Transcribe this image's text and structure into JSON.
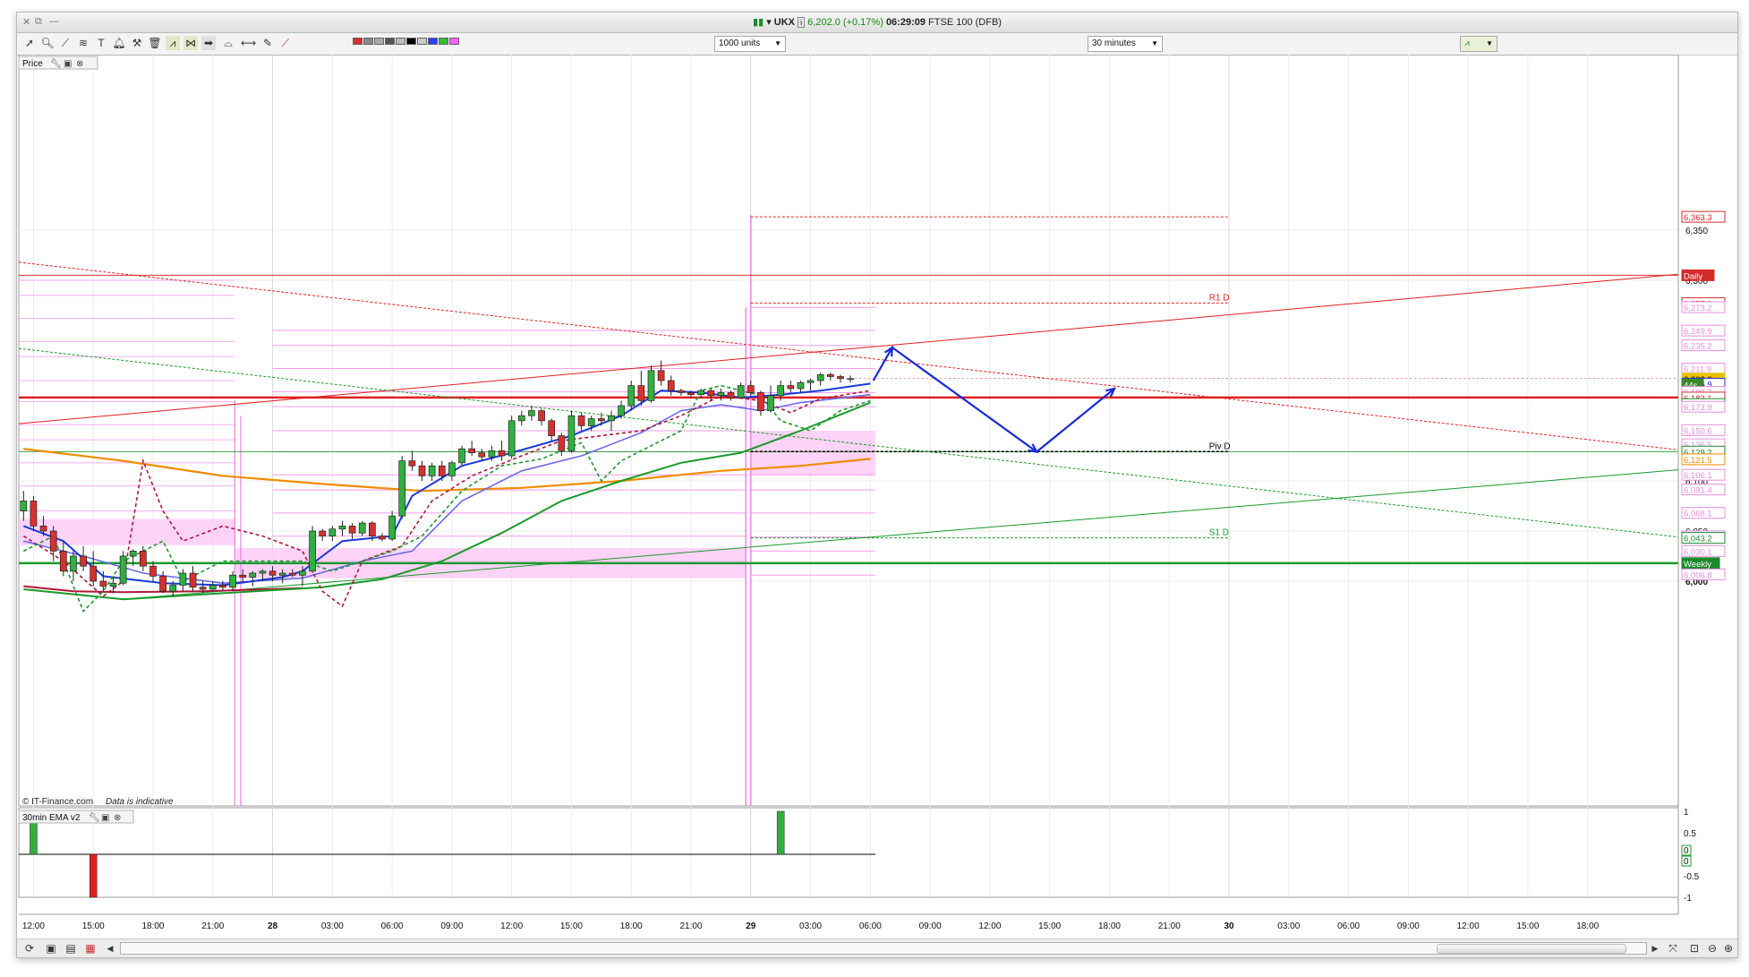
{
  "window": {
    "symbol": "UKX",
    "price": "6,202.0",
    "change": "(+0.17%)",
    "time": "06:29:09",
    "instrument": "FTSE 100 (DFB)"
  },
  "toolbar": {
    "units_select": "1000 units",
    "interval_select": "30 minutes"
  },
  "price_panel": {
    "label": "Price",
    "watermark_source": "© IT-Finance.com",
    "watermark_note": "Data is indicative"
  },
  "indicator_panel": {
    "label": "30min EMA v2"
  },
  "price_axis": {
    "ticks": [
      {
        "v": 6350,
        "t": "6,350"
      },
      {
        "v": 6300,
        "t": "6,300"
      },
      {
        "v": 6100,
        "t": "6,100"
      },
      {
        "v": 6050,
        "t": "6,050"
      },
      {
        "v": 6000,
        "t": "6,000"
      }
    ],
    "badges": [
      {
        "v": 6363.3,
        "t": "6,363.3",
        "c": "#d42a2a"
      },
      {
        "v": 6305,
        "t": "Daily",
        "c": "#d42a2a",
        "fill": true
      },
      {
        "v": 6277.3,
        "t": "6,277.3",
        "c": "#d42a2a"
      },
      {
        "v": 6273.2,
        "t": "6,273.2",
        "c": "#e88ce0"
      },
      {
        "v": 6249.9,
        "t": "6,249.9",
        "c": "#e88ce0"
      },
      {
        "v": 6235.2,
        "t": "6,235.2",
        "c": "#e88ce0"
      },
      {
        "v": 6211.9,
        "t": "6,211.9",
        "c": "#e88ce0"
      },
      {
        "v": 6202.0,
        "t": "6,202.0",
        "c": "#e8c200",
        "fill": true
      },
      {
        "v": 6196.9,
        "t": "6,196.9",
        "c": "#2a32d4"
      },
      {
        "v": 6196.0,
        "t": "44s",
        "c": "#3a8a2a",
        "fill": true
      },
      {
        "v": 6188.7,
        "t": "6,188.7",
        "c": "#e88ce0"
      },
      {
        "v": 6183.1,
        "t": "6,183.1",
        "c": "#d42a2a"
      },
      {
        "v": 6176.6,
        "t": "6,176.6",
        "c": "#1a8a2a"
      },
      {
        "v": 6173.9,
        "t": "6,173.9",
        "c": "#e88ce0"
      },
      {
        "v": 6150.6,
        "t": "6,150.6",
        "c": "#e88ce0"
      },
      {
        "v": 6136.5,
        "t": "6,136.5",
        "c": "#e88ce0"
      },
      {
        "v": 6129.2,
        "t": "6,129.2",
        "c": "#1a8a2a"
      },
      {
        "v": 6121.5,
        "t": "6,121.5",
        "c": "#f08c00"
      },
      {
        "v": 6106.1,
        "t": "6,106.1",
        "c": "#e88ce0"
      },
      {
        "v": 6091.4,
        "t": "6,091.4",
        "c": "#e88ce0"
      },
      {
        "v": 6068.1,
        "t": "6,068.1",
        "c": "#e88ce0"
      },
      {
        "v": 6044.8,
        "t": "6,044.8",
        "c": "#e88ce0"
      },
      {
        "v": 6043.2,
        "t": "6,043.2",
        "c": "#1a8a2a"
      },
      {
        "v": 6030.1,
        "t": "6,030.1",
        "c": "#e88ce0"
      },
      {
        "v": 6018,
        "t": "Weekly",
        "c": "#1a8a2a",
        "fill": true
      },
      {
        "v": 6006.8,
        "t": "6,006.8",
        "c": "#e88ce0"
      }
    ]
  },
  "pivots": {
    "r1": {
      "label": "R1 D",
      "v": 6277.3
    },
    "piv": {
      "label": "Piv D",
      "v": 6129.2
    },
    "s1": {
      "label": "S1 D",
      "v": 6043.2
    }
  },
  "levels": {
    "daily": 6305,
    "main_red": 6183.1,
    "weekly": 6018
  },
  "indicator_axis": [
    "1",
    "0.5",
    "0",
    "0",
    "-0.5",
    "-1"
  ],
  "time_axis": [
    {
      "i": 1,
      "t": "12:00"
    },
    {
      "i": 7,
      "t": "15:00"
    },
    {
      "i": 13,
      "t": "18:00"
    },
    {
      "i": 19,
      "t": "21:00"
    },
    {
      "i": 25,
      "t": "28",
      "bold": true
    },
    {
      "i": 31,
      "t": "03:00"
    },
    {
      "i": 37,
      "t": "06:00"
    },
    {
      "i": 43,
      "t": "09:00"
    },
    {
      "i": 49,
      "t": "12:00"
    },
    {
      "i": 55,
      "t": "15:00"
    },
    {
      "i": 61,
      "t": "18:00"
    },
    {
      "i": 67,
      "t": "21:00"
    },
    {
      "i": 73,
      "t": "29",
      "bold": true
    },
    {
      "i": 79,
      "t": "03:00"
    },
    {
      "i": 85,
      "t": "06:00"
    },
    {
      "i": 91,
      "t": "09:00"
    },
    {
      "i": 97,
      "t": "12:00"
    },
    {
      "i": 103,
      "t": "15:00"
    },
    {
      "i": 109,
      "t": "18:00"
    },
    {
      "i": 115,
      "t": "21:00"
    },
    {
      "i": 121,
      "t": "30",
      "bold": true
    },
    {
      "i": 127,
      "t": "03:00"
    },
    {
      "i": 133,
      "t": "06:00"
    },
    {
      "i": 139,
      "t": "09:00"
    },
    {
      "i": 145,
      "t": "12:00"
    },
    {
      "i": 151,
      "t": "15:00"
    },
    {
      "i": 157,
      "t": "18:00"
    }
  ],
  "chart_data": {
    "type": "candlestick",
    "instrument": "FTSE 100 (DFB)",
    "interval": "30 minutes",
    "ylim": [
      5990,
      6365
    ],
    "candles": [
      [
        6070,
        6090,
        6060,
        6080
      ],
      [
        6080,
        6085,
        6050,
        6055
      ],
      [
        6055,
        6065,
        6045,
        6050
      ],
      [
        6050,
        6055,
        6020,
        6030
      ],
      [
        6030,
        6040,
        6005,
        6010
      ],
      [
        6010,
        6030,
        6000,
        6025
      ],
      [
        6025,
        6035,
        6010,
        6015
      ],
      [
        6015,
        6030,
        5995,
        6000
      ],
      [
        6000,
        6010,
        5990,
        5995
      ],
      [
        5995,
        6005,
        5988,
        5998
      ],
      [
        5998,
        6030,
        5996,
        6025
      ],
      [
        6025,
        6032,
        6015,
        6030
      ],
      [
        6030,
        6035,
        6010,
        6015
      ],
      [
        6015,
        6020,
        6000,
        6005
      ],
      [
        6005,
        6010,
        5988,
        5990
      ],
      [
        5990,
        6000,
        5985,
        5996
      ],
      [
        5996,
        6012,
        5990,
        6008
      ],
      [
        6008,
        6015,
        5990,
        5994
      ],
      [
        5994,
        6000,
        5988,
        5992
      ],
      [
        5992,
        6000,
        5990,
        5996
      ],
      [
        5996,
        6000,
        5990,
        5994
      ],
      [
        5994,
        6010,
        5990,
        6006
      ],
      [
        6006,
        6012,
        5998,
        6004
      ],
      [
        6004,
        6010,
        5995,
        6008
      ],
      [
        6008,
        6012,
        6000,
        6010
      ],
      [
        6010,
        6015,
        6000,
        6006
      ],
      [
        6006,
        6012,
        5998,
        6008
      ],
      [
        6008,
        6012,
        6004,
        6006
      ],
      [
        6006,
        6015,
        5995,
        6010
      ],
      [
        6010,
        6055,
        6008,
        6050
      ],
      [
        6050,
        6052,
        6040,
        6045
      ],
      [
        6045,
        6055,
        6040,
        6052
      ],
      [
        6052,
        6060,
        6045,
        6055
      ],
      [
        6055,
        6058,
        6042,
        6048
      ],
      [
        6048,
        6060,
        6045,
        6058
      ],
      [
        6058,
        6060,
        6040,
        6045
      ],
      [
        6045,
        6048,
        6040,
        6042
      ],
      [
        6042,
        6070,
        6040,
        6065
      ],
      [
        6065,
        6125,
        6062,
        6120
      ],
      [
        6120,
        6130,
        6110,
        6115
      ],
      [
        6115,
        6120,
        6100,
        6105
      ],
      [
        6105,
        6118,
        6100,
        6115
      ],
      [
        6115,
        6120,
        6100,
        6105
      ],
      [
        6105,
        6120,
        6100,
        6118
      ],
      [
        6118,
        6135,
        6115,
        6132
      ],
      [
        6132,
        6140,
        6125,
        6128
      ],
      [
        6128,
        6132,
        6120,
        6124
      ],
      [
        6124,
        6135,
        6120,
        6130
      ],
      [
        6130,
        6140,
        6120,
        6125
      ],
      [
        6125,
        6165,
        6122,
        6160
      ],
      [
        6160,
        6170,
        6155,
        6165
      ],
      [
        6165,
        6175,
        6160,
        6170
      ],
      [
        6170,
        6172,
        6155,
        6160
      ],
      [
        6160,
        6162,
        6140,
        6145
      ],
      [
        6145,
        6148,
        6125,
        6130
      ],
      [
        6130,
        6170,
        6128,
        6165
      ],
      [
        6165,
        6168,
        6150,
        6155
      ],
      [
        6155,
        6165,
        6150,
        6162
      ],
      [
        6162,
        6168,
        6155,
        6160
      ],
      [
        6160,
        6170,
        6150,
        6165
      ],
      [
        6165,
        6180,
        6162,
        6175
      ],
      [
        6175,
        6200,
        6170,
        6195
      ],
      [
        6195,
        6210,
        6175,
        6180
      ],
      [
        6180,
        6215,
        6178,
        6210
      ],
      [
        6210,
        6220,
        6195,
        6200
      ],
      [
        6200,
        6205,
        6185,
        6190
      ],
      [
        6190,
        6192,
        6185,
        6188
      ],
      [
        6188,
        6190,
        6183,
        6186
      ],
      [
        6186,
        6192,
        6183,
        6190
      ],
      [
        6190,
        6192,
        6180,
        6185
      ],
      [
        6185,
        6192,
        6180,
        6188
      ],
      [
        6188,
        6190,
        6180,
        6183
      ],
      [
        6183,
        6198,
        6182,
        6195
      ],
      [
        6195,
        6200,
        6185,
        6188
      ],
      [
        6188,
        6190,
        6165,
        6170
      ],
      [
        6170,
        6195,
        6168,
        6185
      ],
      [
        6185,
        6200,
        6180,
        6195
      ],
      [
        6195,
        6200,
        6188,
        6192
      ],
      [
        6192,
        6200,
        6188,
        6198
      ],
      [
        6198,
        6202,
        6190,
        6200
      ],
      [
        6200,
        6208,
        6195,
        6206
      ],
      [
        6206,
        6208,
        6200,
        6204
      ],
      [
        6204,
        6206,
        6198,
        6202
      ],
      [
        6202,
        6205,
        6198,
        6202
      ]
    ],
    "ema_fast_pts": [
      [
        0,
        6055
      ],
      [
        4,
        6040
      ],
      [
        8,
        6005
      ],
      [
        14,
        5998
      ],
      [
        20,
        5996
      ],
      [
        26,
        6004
      ],
      [
        28,
        6010
      ],
      [
        32,
        6040
      ],
      [
        37,
        6045
      ],
      [
        39,
        6085
      ],
      [
        44,
        6115
      ],
      [
        49,
        6128
      ],
      [
        55,
        6145
      ],
      [
        60,
        6165
      ],
      [
        64,
        6190
      ],
      [
        68,
        6188
      ],
      [
        72,
        6183
      ],
      [
        76,
        6186
      ],
      [
        80,
        6190
      ],
      [
        85,
        6197
      ]
    ],
    "ema_mid_pts": [
      [
        0,
        6040
      ],
      [
        6,
        6025
      ],
      [
        12,
        6008
      ],
      [
        20,
        5998
      ],
      [
        28,
        6003
      ],
      [
        34,
        6020
      ],
      [
        39,
        6030
      ],
      [
        44,
        6080
      ],
      [
        50,
        6110
      ],
      [
        56,
        6125
      ],
      [
        62,
        6148
      ],
      [
        66,
        6170
      ],
      [
        70,
        6176
      ],
      [
        74,
        6170
      ],
      [
        78,
        6178
      ],
      [
        85,
        6186
      ]
    ],
    "ema_slow_pts": [
      [
        0,
        5992
      ],
      [
        10,
        5982
      ],
      [
        20,
        5988
      ],
      [
        30,
        5994
      ],
      [
        36,
        6002
      ],
      [
        42,
        6020
      ],
      [
        48,
        6048
      ],
      [
        54,
        6080
      ],
      [
        60,
        6100
      ],
      [
        66,
        6118
      ],
      [
        72,
        6128
      ],
      [
        78,
        6150
      ],
      [
        85,
        6178
      ]
    ],
    "ema_orange_pts": [
      [
        0,
        6132
      ],
      [
        10,
        6120
      ],
      [
        20,
        6105
      ],
      [
        30,
        6097
      ],
      [
        40,
        6090
      ],
      [
        50,
        6093
      ],
      [
        60,
        6100
      ],
      [
        70,
        6110
      ],
      [
        78,
        6115
      ],
      [
        85,
        6122
      ]
    ],
    "ema_red_pts": [
      [
        0,
        5995
      ],
      [
        5,
        5990
      ],
      [
        10,
        5989
      ],
      [
        18,
        5990
      ],
      [
        28,
        5993
      ]
    ],
    "dash_green_pts": [
      [
        0,
        6030
      ],
      [
        3,
        6045
      ],
      [
        6,
        5970
      ],
      [
        8,
        5990
      ],
      [
        10,
        6020
      ],
      [
        14,
        6040
      ],
      [
        16,
        6000
      ],
      [
        20,
        6020
      ],
      [
        28,
        6020
      ],
      [
        31,
        6010
      ],
      [
        34,
        6020
      ],
      [
        37,
        6030
      ],
      [
        40,
        6045
      ],
      [
        44,
        6090
      ],
      [
        48,
        6115
      ],
      [
        52,
        6122
      ],
      [
        56,
        6138
      ],
      [
        58,
        6100
      ],
      [
        60,
        6120
      ],
      [
        64,
        6140
      ],
      [
        66,
        6150
      ],
      [
        68,
        6190
      ],
      [
        70,
        6195
      ],
      [
        74,
        6185
      ],
      [
        76,
        6160
      ],
      [
        79,
        6150
      ],
      [
        82,
        6170
      ],
      [
        85,
        6180
      ]
    ],
    "dash_red_pts": [
      [
        0,
        6045
      ],
      [
        4,
        6020
      ],
      [
        8,
        5985
      ],
      [
        10,
        6000
      ],
      [
        12,
        6120
      ],
      [
        14,
        6070
      ],
      [
        16,
        6040
      ],
      [
        20,
        6055
      ],
      [
        24,
        6045
      ],
      [
        28,
        6030
      ],
      [
        30,
        5990
      ],
      [
        32,
        5975
      ],
      [
        34,
        6020
      ],
      [
        38,
        6035
      ],
      [
        41,
        6080
      ],
      [
        45,
        6105
      ],
      [
        50,
        6125
      ],
      [
        54,
        6140
      ],
      [
        58,
        6145
      ],
      [
        62,
        6150
      ],
      [
        66,
        6165
      ],
      [
        70,
        6185
      ],
      [
        74,
        6180
      ],
      [
        77,
        6168
      ],
      [
        80,
        6182
      ],
      [
        85,
        6190
      ]
    ],
    "indicator_bars": [
      {
        "i": 1,
        "v": 1
      },
      {
        "i": 7,
        "v": -1
      },
      {
        "i": 76,
        "v": 1
      }
    ]
  }
}
